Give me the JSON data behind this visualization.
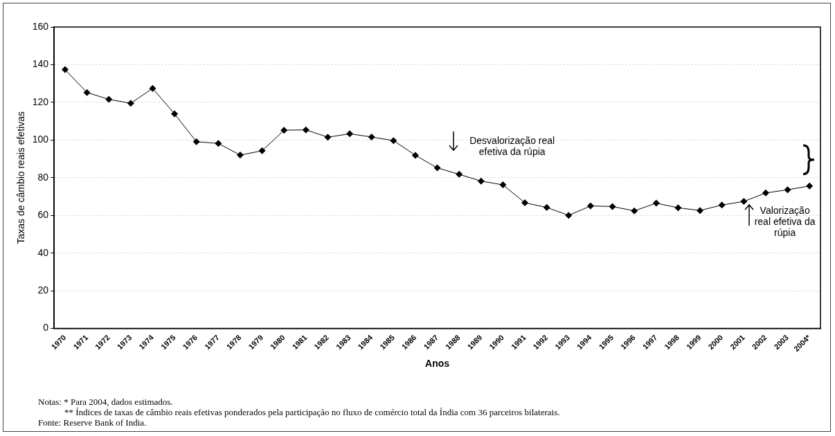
{
  "chart_data": {
    "type": "line",
    "xlabel": "Anos",
    "ylabel": "Taxas de câmbio reais efetivas",
    "categories": [
      "1970",
      "1971",
      "1972",
      "1973",
      "1974",
      "1975",
      "1976",
      "1977",
      "1978",
      "1979",
      "1980",
      "1981",
      "1982",
      "1983",
      "1984",
      "1985",
      "1986",
      "1987",
      "1988",
      "1989",
      "1990",
      "1991",
      "1992",
      "1993",
      "1994",
      "1995",
      "1996",
      "1997",
      "1998",
      "1999",
      "2000",
      "2001",
      "2002",
      "2003",
      "2004*"
    ],
    "series": [
      {
        "color": "#000000",
        "values": [
          137.4,
          125.2,
          121.6,
          119.5,
          127.4,
          113.9,
          99.1,
          98.2,
          92.0,
          94.3,
          105.2,
          105.4,
          101.5,
          103.3,
          101.6,
          99.7,
          91.9,
          85.2,
          81.8,
          78.2,
          76.2,
          66.7,
          64.2,
          60.0,
          65.0,
          64.7,
          62.4,
          66.5,
          64.0,
          62.6,
          65.5,
          67.4,
          71.9,
          73.6,
          75.6
        ]
      }
    ],
    "ylim": [
      0,
      160
    ],
    "yticks": [
      0,
      20,
      40,
      60,
      80,
      100,
      120,
      140,
      160
    ],
    "grid": "y",
    "marker": "diamond",
    "line_style": "solid",
    "legend": false,
    "annotations": [
      "Desvalorização real efetiva da rúpia",
      "Valorização real efetiva da rúpia",
      "Notas: *  Para 2004, dados estimados.",
      "** Índices de taxas de câmbio reais efetivas ponderados pela participação no fluxo de comércio total da Índia com 36 parceiros bilaterais.",
      "Fonte: Reserve Bank of India."
    ]
  }
}
